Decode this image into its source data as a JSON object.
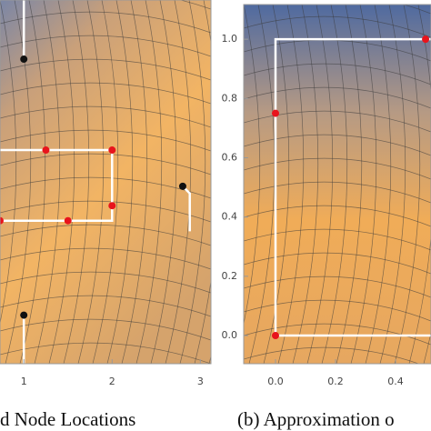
{
  "panels": [
    {
      "caption": "d Node Locations",
      "xlim": [
        0.73,
        3.12
      ],
      "ylim": [
        0,
        4.12
      ],
      "xticks": [
        1,
        2,
        3
      ],
      "nodes": [
        {
          "x": 0.73,
          "y": 1.62,
          "color": "#e8141c"
        },
        {
          "x": 1.25,
          "y": 2.42,
          "color": "#e8141c"
        },
        {
          "x": 2.0,
          "y": 2.42,
          "color": "#e8141c"
        },
        {
          "x": 2.0,
          "y": 1.79,
          "color": "#e8141c"
        },
        {
          "x": 1.5,
          "y": 1.62,
          "color": "#e8141c"
        },
        {
          "x": 1.0,
          "y": 3.45,
          "color": "#111111"
        },
        {
          "x": 2.8,
          "y": 2.01,
          "color": "#111111"
        },
        {
          "x": 1.0,
          "y": 0.55,
          "color": "#111111"
        }
      ],
      "paths": [
        {
          "x": [
            1.0,
            1.0
          ],
          "y": [
            4.12,
            3.45
          ]
        },
        {
          "x": [
            0.73,
            2.0,
            2.0,
            0.73
          ],
          "y": [
            2.42,
            2.42,
            1.62,
            1.62
          ]
        },
        {
          "x": [
            1.0,
            1.0
          ],
          "y": [
            0,
            0.55
          ]
        },
        {
          "x": [
            2.8,
            2.88,
            2.88
          ],
          "y": [
            2.01,
            1.93,
            1.5
          ]
        }
      ]
    },
    {
      "caption": "(b) Approximation o",
      "xlim": [
        -0.106,
        0.518
      ],
      "ylim": [
        -0.095,
        1.117
      ],
      "xticks": [
        {
          "value": 0,
          "label": "0.0"
        },
        0.2,
        0.4
      ],
      "yticks": [
        {
          "value": 0,
          "label": "0.0"
        },
        0.2,
        0.4,
        0.6,
        0.8,
        {
          "value": 1,
          "label": "1.0"
        }
      ],
      "nodes": [
        {
          "x": 0,
          "y": 0,
          "color": "#e8141c"
        },
        {
          "x": 0,
          "y": 0.75,
          "color": "#e8141c"
        },
        {
          "x": 0.5,
          "y": 1.0,
          "color": "#e8141c"
        }
      ],
      "paths": [
        {
          "x": [
            0.52,
            0,
            0,
            0.52
          ],
          "y": [
            1.0,
            1.0,
            0,
            0
          ]
        }
      ]
    }
  ]
}
